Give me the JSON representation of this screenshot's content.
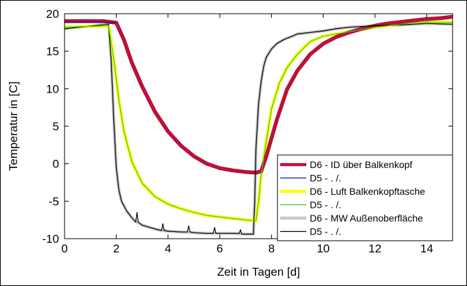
{
  "chart_data": {
    "type": "line",
    "xlabel": "Zeit in Tagen [d]",
    "ylabel": "Temperatur in [C]",
    "xlim": [
      0,
      15
    ],
    "ylim": [
      -10,
      20
    ],
    "xticks": [
      0,
      2,
      4,
      6,
      8,
      10,
      12,
      14
    ],
    "yticks": [
      -10,
      -5,
      0,
      5,
      10,
      15,
      20
    ],
    "legend_position": "right",
    "grid": false,
    "series": [
      {
        "name": "D6 - ID über Balkenkopf",
        "color": "#c0103a",
        "highlight": "#8a0826",
        "width": 4.5,
        "x": [
          0,
          1.5,
          2.0,
          2.3,
          2.6,
          3.0,
          3.5,
          4.0,
          4.5,
          5.0,
          5.5,
          6.0,
          6.5,
          7.0,
          7.4,
          7.6,
          7.8,
          8.2,
          8.6,
          9.0,
          9.5,
          10.0,
          10.5,
          11.0,
          11.5,
          12.0,
          12.5,
          13.0,
          13.5,
          14.0,
          14.5,
          15.0
        ],
        "y": [
          19,
          19,
          18.8,
          16.5,
          13.5,
          10.3,
          6.9,
          4.3,
          2.4,
          1.0,
          0.0,
          -0.6,
          -0.9,
          -1.1,
          -1.2,
          -1.0,
          1.0,
          5.8,
          9.9,
          12.4,
          14.6,
          16.0,
          16.9,
          17.5,
          18.0,
          18.4,
          18.7,
          18.9,
          19.1,
          19.3,
          19.4,
          19.6
        ]
      },
      {
        "name": "D5 - . /.",
        "color": "#0a1f8f",
        "width": 1.2,
        "x": [
          0,
          1.5,
          1.8,
          2.0
        ],
        "y": [
          18.9,
          18.9,
          18.8,
          18.8
        ]
      },
      {
        "name": "D6 - Luft Balkenkopftasche",
        "color": "#ffff00",
        "width": 4.5,
        "x": [
          0,
          1.7,
          1.9,
          2.1,
          2.3,
          2.6,
          3.0,
          3.5,
          4.0,
          4.5,
          5.0,
          5.5,
          6.0,
          6.5,
          7.0,
          7.4,
          7.5,
          7.6,
          7.8,
          8.0,
          8.3,
          8.6,
          9.0,
          9.5,
          10.0,
          11.0,
          12.0,
          13.0,
          14.0,
          15.0
        ],
        "y": [
          18.2,
          18.4,
          14.0,
          8.5,
          4.3,
          0.3,
          -2.6,
          -4.4,
          -5.4,
          -6.0,
          -6.5,
          -6.9,
          -7.1,
          -7.3,
          -7.5,
          -7.6,
          -5.0,
          -1.5,
          3.0,
          7.3,
          10.7,
          12.8,
          14.6,
          16.3,
          17.0,
          17.6,
          18.2,
          18.6,
          18.9,
          18.8
        ]
      },
      {
        "name": "D5 - . /.",
        "color": "#33cc33",
        "width": 1.2,
        "x": [
          0,
          1.7,
          1.9,
          2.1,
          2.3,
          2.6,
          3.0,
          3.5,
          4.0,
          4.5,
          5.0,
          5.5,
          6.0,
          6.5,
          7.0,
          7.4,
          7.5,
          7.6,
          7.8,
          8.0,
          8.3,
          8.6,
          9.0,
          9.5,
          10.0,
          11.0,
          12.0,
          13.0,
          14.0,
          15.0
        ],
        "y": [
          18.2,
          18.4,
          14.0,
          8.5,
          4.3,
          0.3,
          -2.6,
          -4.4,
          -5.4,
          -6.0,
          -6.5,
          -6.9,
          -7.1,
          -7.3,
          -7.5,
          -7.6,
          -5.0,
          -1.5,
          3.0,
          7.3,
          10.7,
          12.8,
          14.6,
          16.3,
          17.0,
          17.6,
          18.2,
          18.6,
          18.9,
          18.8
        ]
      },
      {
        "name": "D6 - MW Außenoberfläche",
        "color": "#c8c8c8",
        "width": 4.5,
        "x": [
          0,
          1.7,
          1.8,
          1.9,
          2.0,
          2.1,
          2.2,
          2.4,
          2.6,
          2.8,
          3.0,
          3.3,
          3.6,
          4.0,
          4.5,
          5.0,
          5.5,
          6.0,
          6.5,
          7.0,
          7.3,
          7.35,
          7.4,
          7.5,
          7.6,
          7.7,
          7.8,
          8.0,
          8.2,
          8.5,
          8.8,
          9.0,
          9.5,
          10.0,
          10.5,
          11.0,
          12.0,
          13.0,
          14.0,
          15.0
        ],
        "y": [
          18.0,
          18.6,
          14.0,
          6.0,
          -0.5,
          -3.5,
          -5.0,
          -6.3,
          -7.2,
          -7.8,
          -8.2,
          -8.5,
          -8.8,
          -9.0,
          -9.1,
          -9.2,
          -9.3,
          -9.3,
          -9.3,
          -9.4,
          -9.4,
          -5.0,
          2.0,
          8.0,
          11.0,
          13.0,
          14.2,
          15.3,
          16.0,
          16.6,
          17.0,
          17.3,
          17.5,
          17.7,
          18.0,
          18.2,
          18.4,
          18.5,
          18.7,
          18.6
        ]
      },
      {
        "name": "D5 - . /.",
        "color": "#000000",
        "width": 1.2,
        "x": [
          0,
          1.7,
          1.8,
          1.9,
          2.0,
          2.1,
          2.2,
          2.4,
          2.6,
          2.75,
          2.8,
          2.85,
          3.0,
          3.3,
          3.6,
          3.75,
          3.8,
          3.85,
          4.0,
          4.5,
          4.75,
          4.8,
          4.85,
          5.0,
          5.5,
          5.75,
          5.8,
          5.85,
          6.0,
          6.5,
          6.75,
          6.8,
          6.85,
          7.0,
          7.3,
          7.35,
          7.4,
          7.5,
          7.6,
          7.7,
          7.8,
          8.0,
          8.2,
          8.5,
          8.8,
          9.0,
          9.5,
          10.0,
          10.5,
          11.0,
          12.0,
          13.0,
          14.0,
          15.0
        ],
        "y": [
          18.0,
          18.6,
          14.0,
          6.0,
          -0.5,
          -3.5,
          -5.0,
          -6.3,
          -7.2,
          -7.8,
          -6.5,
          -7.8,
          -8.2,
          -8.5,
          -8.8,
          -8.9,
          -8.0,
          -8.9,
          -9.0,
          -9.1,
          -9.1,
          -8.3,
          -9.1,
          -9.2,
          -9.3,
          -9.3,
          -8.5,
          -9.3,
          -9.3,
          -9.3,
          -9.3,
          -8.8,
          -9.4,
          -9.4,
          -9.4,
          -5.0,
          2.0,
          8.0,
          11.0,
          13.0,
          14.2,
          15.3,
          16.0,
          16.6,
          17.0,
          17.3,
          17.5,
          17.7,
          18.0,
          18.2,
          18.4,
          18.5,
          18.7,
          18.6
        ]
      }
    ]
  }
}
